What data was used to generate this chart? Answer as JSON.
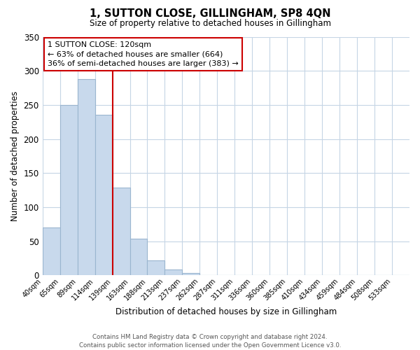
{
  "title": "1, SUTTON CLOSE, GILLINGHAM, SP8 4QN",
  "subtitle": "Size of property relative to detached houses in Gillingham",
  "xlabel": "Distribution of detached houses by size in Gillingham",
  "ylabel": "Number of detached properties",
  "bar_labels": [
    "40sqm",
    "65sqm",
    "89sqm",
    "114sqm",
    "139sqm",
    "163sqm",
    "188sqm",
    "213sqm",
    "237sqm",
    "262sqm",
    "287sqm",
    "311sqm",
    "336sqm",
    "360sqm",
    "385sqm",
    "410sqm",
    "434sqm",
    "459sqm",
    "484sqm",
    "508sqm",
    "533sqm"
  ],
  "bar_values": [
    70,
    250,
    288,
    236,
    129,
    54,
    22,
    9,
    4,
    0,
    0,
    0,
    0,
    0,
    0,
    0,
    0,
    0,
    0,
    1,
    0
  ],
  "bar_color": "#c8d9ec",
  "bar_edge_color": "#9ab5cf",
  "vline_x_bar_index": 3,
  "vline_color": "#cc0000",
  "annotation_title": "1 SUTTON CLOSE: 120sqm",
  "annotation_line1": "← 63% of detached houses are smaller (664)",
  "annotation_line2": "36% of semi-detached houses are larger (383) →",
  "annotation_box_color": "#ffffff",
  "annotation_box_edge": "#cc0000",
  "ylim": [
    0,
    350
  ],
  "yticks": [
    0,
    50,
    100,
    150,
    200,
    250,
    300,
    350
  ],
  "footer_line1": "Contains HM Land Registry data © Crown copyright and database right 2024.",
  "footer_line2": "Contains public sector information licensed under the Open Government Licence v3.0.",
  "background_color": "#ffffff",
  "grid_color": "#c5d5e5"
}
